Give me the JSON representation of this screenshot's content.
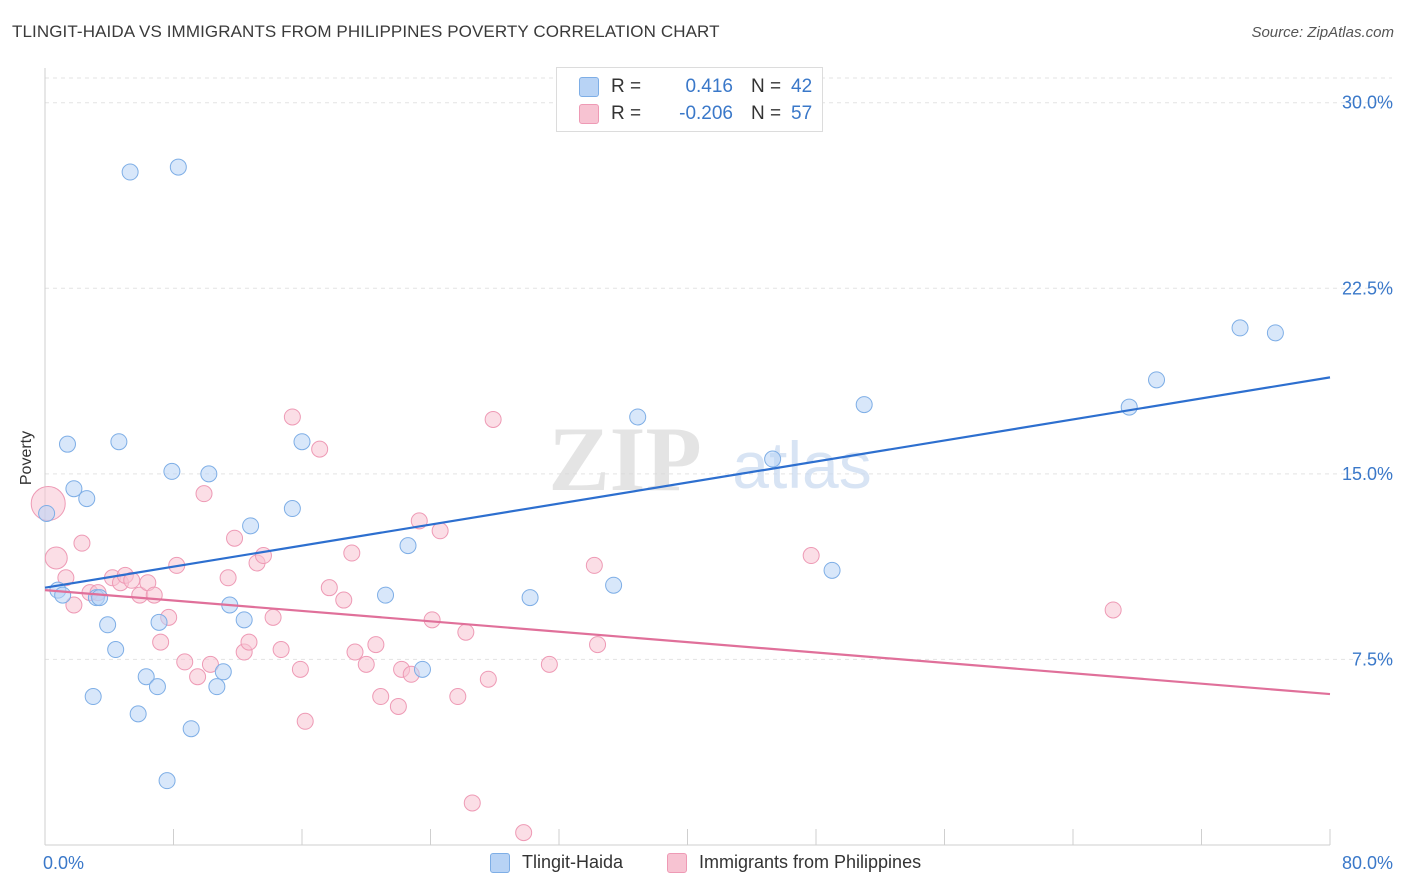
{
  "title": "TLINGIT-HAIDA VS IMMIGRANTS FROM PHILIPPINES POVERTY CORRELATION CHART",
  "source": "Source: ZipAtlas.com",
  "watermark": {
    "zip": "ZIP",
    "atlas": "atlas"
  },
  "legend": {
    "series1": {
      "r_label": "R =",
      "r_value": "0.416",
      "n_label": "N =",
      "n_value": "42"
    },
    "series2": {
      "r_label": "R =",
      "r_value": "-0.206",
      "n_label": "N =",
      "n_value": "57"
    }
  },
  "colors": {
    "blue_fill": "#b8d3f5",
    "blue_stroke": "#7eaee6",
    "blue_line": "#2d6fcf",
    "blue_text": "#3a78c9",
    "pink_fill": "#f7c3d2",
    "pink_stroke": "#ee9ab5",
    "pink_line": "#e0709a",
    "grid": "#e3e3e3",
    "axis_text": "#3a78c9"
  },
  "chart_data": {
    "type": "scatter",
    "title": "TLINGIT-HAIDA VS IMMIGRANTS FROM PHILIPPINES POVERTY CORRELATION CHART",
    "xlabel": "",
    "ylabel": "Poverty",
    "xlim": [
      0,
      80
    ],
    "ylim": [
      0,
      31
    ],
    "x_tick_labels": [
      "0.0%",
      "80.0%"
    ],
    "y_ticks": [
      7.5,
      15.0,
      22.5,
      30.0
    ],
    "y_tick_labels": [
      "7.5%",
      "15.0%",
      "22.5%",
      "30.0%"
    ],
    "grid": true,
    "series": [
      {
        "name": "Tlingit-Haida",
        "r": 0.416,
        "n": 42,
        "trend": {
          "x0": 0,
          "y0": 10.4,
          "x1": 80,
          "y1": 18.9
        },
        "points": [
          [
            0.1,
            13.4
          ],
          [
            0.8,
            10.3
          ],
          [
            1.1,
            10.1
          ],
          [
            1.4,
            16.2
          ],
          [
            1.8,
            14.4
          ],
          [
            2.6,
            14.0
          ],
          [
            3.0,
            6.0
          ],
          [
            3.2,
            10.0
          ],
          [
            3.4,
            10.0
          ],
          [
            3.9,
            8.9
          ],
          [
            4.4,
            7.9
          ],
          [
            4.6,
            16.3
          ],
          [
            5.3,
            27.2
          ],
          [
            5.8,
            5.3
          ],
          [
            6.3,
            6.8
          ],
          [
            7.0,
            6.4
          ],
          [
            7.1,
            9.0
          ],
          [
            7.6,
            2.6
          ],
          [
            7.9,
            15.1
          ],
          [
            8.3,
            27.4
          ],
          [
            9.1,
            4.7
          ],
          [
            10.2,
            15.0
          ],
          [
            10.7,
            6.4
          ],
          [
            11.1,
            7.0
          ],
          [
            11.5,
            9.7
          ],
          [
            12.4,
            9.1
          ],
          [
            12.8,
            12.9
          ],
          [
            15.4,
            13.6
          ],
          [
            16.0,
            16.3
          ],
          [
            21.2,
            10.1
          ],
          [
            22.6,
            12.1
          ],
          [
            23.5,
            7.1
          ],
          [
            30.2,
            10.0
          ],
          [
            35.4,
            10.5
          ],
          [
            36.9,
            17.3
          ],
          [
            45.3,
            15.6
          ],
          [
            49.0,
            11.1
          ],
          [
            51.0,
            17.8
          ],
          [
            67.5,
            17.7
          ],
          [
            69.2,
            18.8
          ],
          [
            74.4,
            20.9
          ],
          [
            76.6,
            20.7
          ]
        ]
      },
      {
        "name": "Immigrants from Philippines",
        "r": -0.206,
        "n": 57,
        "trend": {
          "x0": 0,
          "y0": 10.3,
          "x1": 80,
          "y1": 6.1
        },
        "points": [
          [
            0.2,
            13.8
          ],
          [
            0.7,
            11.6
          ],
          [
            1.3,
            10.8
          ],
          [
            1.8,
            9.7
          ],
          [
            2.3,
            12.2
          ],
          [
            2.8,
            10.2
          ],
          [
            3.3,
            10.2
          ],
          [
            4.2,
            10.8
          ],
          [
            4.7,
            10.6
          ],
          [
            5.0,
            10.9
          ],
          [
            5.4,
            10.7
          ],
          [
            5.9,
            10.1
          ],
          [
            6.4,
            10.6
          ],
          [
            6.8,
            10.1
          ],
          [
            7.2,
            8.2
          ],
          [
            7.7,
            9.2
          ],
          [
            8.2,
            11.3
          ],
          [
            8.7,
            7.4
          ],
          [
            9.5,
            6.8
          ],
          [
            9.9,
            14.2
          ],
          [
            10.3,
            7.3
          ],
          [
            11.4,
            10.8
          ],
          [
            11.8,
            12.4
          ],
          [
            12.4,
            7.8
          ],
          [
            12.7,
            8.2
          ],
          [
            13.2,
            11.4
          ],
          [
            13.6,
            11.7
          ],
          [
            14.2,
            9.2
          ],
          [
            14.7,
            7.9
          ],
          [
            15.4,
            17.3
          ],
          [
            15.9,
            7.1
          ],
          [
            16.2,
            5.0
          ],
          [
            17.1,
            16.0
          ],
          [
            17.7,
            10.4
          ],
          [
            18.6,
            9.9
          ],
          [
            19.1,
            11.8
          ],
          [
            19.3,
            7.8
          ],
          [
            20.0,
            7.3
          ],
          [
            20.6,
            8.1
          ],
          [
            20.9,
            6.0
          ],
          [
            22.0,
            5.6
          ],
          [
            22.2,
            7.1
          ],
          [
            22.8,
            6.9
          ],
          [
            23.3,
            13.1
          ],
          [
            24.1,
            9.1
          ],
          [
            24.6,
            12.7
          ],
          [
            25.7,
            6.0
          ],
          [
            26.2,
            8.6
          ],
          [
            26.6,
            1.7
          ],
          [
            27.6,
            6.7
          ],
          [
            27.9,
            17.2
          ],
          [
            29.8,
            0.5
          ],
          [
            31.4,
            7.3
          ],
          [
            34.2,
            11.3
          ],
          [
            34.4,
            8.1
          ],
          [
            47.7,
            11.7
          ],
          [
            66.5,
            9.5
          ]
        ]
      }
    ]
  },
  "bottom_legend": {
    "series1_label": "Tlingit-Haida",
    "series2_label": "Immigrants from Philippines"
  }
}
